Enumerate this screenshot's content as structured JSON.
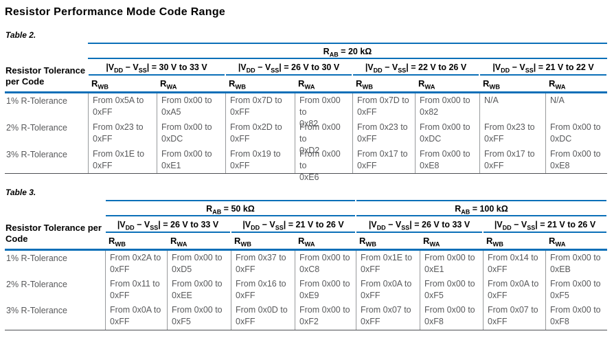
{
  "page": {
    "title": "Resistor Performance Mode Code Range"
  },
  "colors": {
    "accent_blue": "#0a6fb8",
    "grid_line": "#97999b",
    "cell_text_gray": "#58595b",
    "bottom_rule_dark": "#4d4f53"
  },
  "tables": [
    {
      "caption": "Table 2.",
      "row_header_label": "Resistor Tolerance\nper Code",
      "banners": [
        {
          "label": "R~AB~ = 20 kΩ",
          "span": 8
        }
      ],
      "voltage_groups": [
        "|V~DD~ − V~SS~| = 30 V to 33 V",
        "|V~DD~ − V~SS~| = 26 V to 30 V",
        "|V~DD~ − V~SS~| = 22 V to 26 V",
        "|V~DD~ − V~SS~| = 21 V to 22 V"
      ],
      "col_headers": [
        "R~WB~",
        "R~WA~",
        "R~WB~",
        "R~WA~",
        "R~WB~",
        "R~WA~",
        "R~WB~",
        "R~WA~"
      ],
      "rows": [
        {
          "label": "1% R-Tolerance",
          "cells": [
            "From 0x5A to\n0xFF",
            "From 0x00 to\n0xA5",
            "From 0x7D to\n0xFF",
            "From 0x00 to\n0x82",
            "From 0x7D to\n0xFF",
            "From 0x00 to\n0x82",
            "N/A",
            "N/A"
          ]
        },
        {
          "label": "2% R-Tolerance",
          "cells": [
            "From 0x23 to\n0xFF",
            "From 0x00 to\n0xDC",
            "From 0x2D to\n0xFF",
            "From 0x00 to\n0xD2",
            "From 0x23 to\n0xFF",
            "From 0x00 to\n0xDC",
            "From 0x23 to\n0xFF",
            "From 0x00 to\n0xDC"
          ]
        },
        {
          "label": "3% R-Tolerance",
          "cells": [
            "From 0x1E to\n0xFF",
            "From 0x00 to\n0xE1",
            "From 0x19 to\n0xFF",
            "From 0x00 to\n0xE6",
            "From 0x17 to\n0xFF",
            "From 0x00 to\n0xE8",
            "From 0x17 to\n0xFF",
            "From 0x00 to\n0xE8"
          ]
        }
      ]
    },
    {
      "caption": "Table 3.",
      "row_header_label": "Resistor Tolerance per\nCode",
      "banners": [
        {
          "label": "R~AB~ = 50 kΩ",
          "span": 4
        },
        {
          "label": "R~AB~ = 100 kΩ",
          "span": 4
        }
      ],
      "voltage_groups": [
        "|V~DD~ − V~SS~| = 26 V to 33 V",
        "|V~DD~ − V~SS~| = 21 V to 26 V",
        "|V~DD~ − V~SS~| = 26 V to 33 V",
        "|V~DD~ − V~SS~| = 21 V to 26 V"
      ],
      "col_headers": [
        "R~WB~",
        "R~WA~",
        "R~WB~",
        "R~WA~",
        "R~WB~",
        "R~WA~",
        "R~WB~",
        "R~WA~"
      ],
      "rows": [
        {
          "label": "1% R-Tolerance",
          "cells": [
            "From 0x2A to\n0xFF",
            "From 0x00 to\n0xD5",
            "From 0x37 to\n0xFF",
            "From 0x00 to\n0xC8",
            "From 0x1E to\n0xFF",
            "From 0x00 to\n0xE1",
            "From 0x14 to\n0xFF",
            "From 0x00 to\n0xEB"
          ]
        },
        {
          "label": "2% R-Tolerance",
          "cells": [
            "From 0x11 to\n0xFF",
            "From 0x00 to\n0xEE",
            "From 0x16 to\n0xFF",
            "From 0x00 to\n0xE9",
            "From 0x0A to\n0xFF",
            "From 0x00 to\n0xF5",
            "From 0x0A to\n0xFF",
            "From 0x00 to\n0xF5"
          ]
        },
        {
          "label": "3% R-Tolerance",
          "cells": [
            "From 0x0A to\n0xFF",
            "From 0x00 to\n0xF5",
            "From 0x0D to\n0xFF",
            "From 0x00 to\n0xF2",
            "From 0x07 to\n0xFF",
            "From 0x00 to\n0xF8",
            "From 0x07 to\n0xFF",
            "From 0x00 to\n0xF8"
          ]
        }
      ]
    }
  ]
}
